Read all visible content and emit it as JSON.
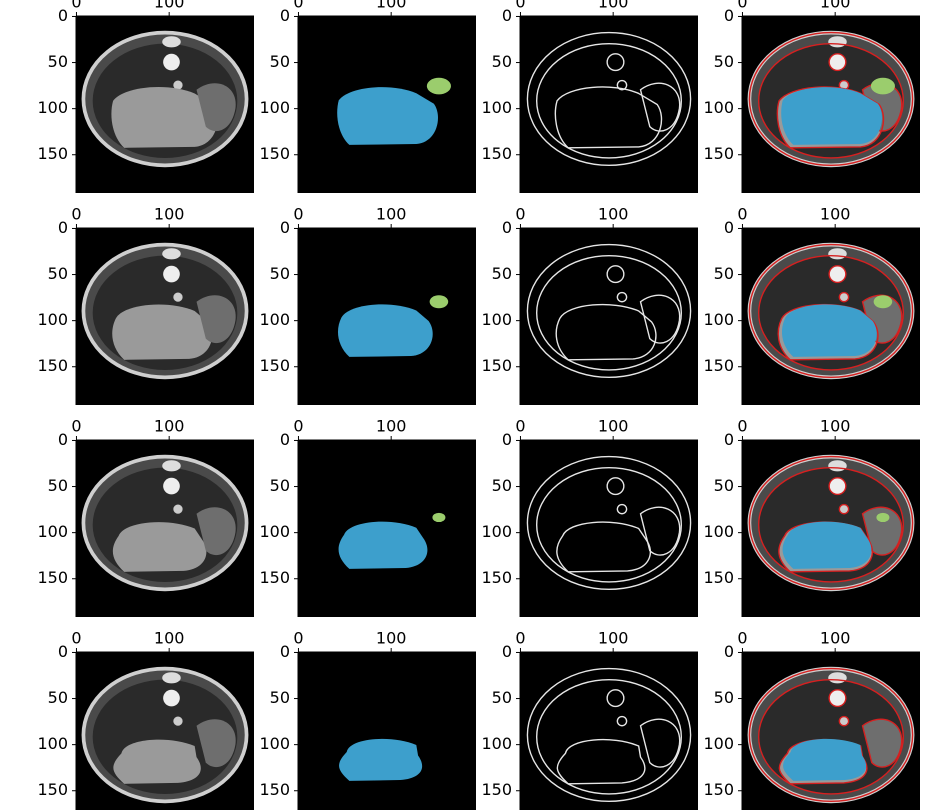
{
  "chart_data": [
    {
      "type": "image",
      "xlim": [
        -0.5,
        191.5
      ],
      "ylim": [
        191.5,
        -0.5
      ],
      "xticks": [
        0,
        100
      ],
      "yticks": [
        0,
        50,
        100,
        150
      ]
    },
    {
      "type": "image",
      "xlim": [
        -0.5,
        191.5
      ],
      "ylim": [
        191.5,
        -0.5
      ],
      "xticks": [
        0,
        100
      ],
      "yticks": [
        0,
        50,
        100,
        150
      ]
    },
    {
      "type": "image",
      "xlim": [
        -0.5,
        191.5
      ],
      "ylim": [
        191.5,
        -0.5
      ],
      "xticks": [
        0,
        100
      ],
      "yticks": [
        0,
        50,
        100,
        150
      ]
    },
    {
      "type": "image",
      "xlim": [
        -0.5,
        191.5
      ],
      "ylim": [
        191.5,
        -0.5
      ],
      "xticks": [
        0,
        100
      ],
      "yticks": [
        0,
        50,
        100,
        150
      ]
    },
    {
      "type": "image",
      "xlim": [
        -0.5,
        191.5
      ],
      "ylim": [
        191.5,
        -0.5
      ],
      "xticks": [
        0,
        100
      ],
      "yticks": [
        0,
        50,
        100,
        150
      ]
    },
    {
      "type": "image",
      "xlim": [
        -0.5,
        191.5
      ],
      "ylim": [
        191.5,
        -0.5
      ],
      "xticks": [
        0,
        100
      ],
      "yticks": [
        0,
        50,
        100,
        150
      ]
    },
    {
      "type": "image",
      "xlim": [
        -0.5,
        191.5
      ],
      "ylim": [
        191.5,
        -0.5
      ],
      "xticks": [
        0,
        100
      ],
      "yticks": [
        0,
        50,
        100,
        150
      ]
    },
    {
      "type": "image",
      "xlim": [
        -0.5,
        191.5
      ],
      "ylim": [
        191.5,
        -0.5
      ],
      "xticks": [
        0,
        100
      ],
      "yticks": [
        0,
        50,
        100,
        150
      ]
    },
    {
      "type": "image",
      "xlim": [
        -0.5,
        191.5
      ],
      "ylim": [
        191.5,
        -0.5
      ],
      "xticks": [
        0,
        100
      ],
      "yticks": [
        0,
        50,
        100,
        150
      ]
    },
    {
      "type": "image",
      "xlim": [
        -0.5,
        191.5
      ],
      "ylim": [
        191.5,
        -0.5
      ],
      "xticks": [
        0,
        100
      ],
      "yticks": [
        0,
        50,
        100,
        150
      ]
    },
    {
      "type": "image",
      "xlim": [
        -0.5,
        191.5
      ],
      "ylim": [
        191.5,
        -0.5
      ],
      "xticks": [
        0,
        100
      ],
      "yticks": [
        0,
        50,
        100,
        150
      ]
    },
    {
      "type": "image",
      "xlim": [
        -0.5,
        191.5
      ],
      "ylim": [
        191.5,
        -0.5
      ],
      "xticks": [
        0,
        100
      ],
      "yticks": [
        0,
        50,
        100,
        150
      ]
    },
    {
      "type": "image",
      "xlim": [
        -0.5,
        191.5
      ],
      "ylim": [
        191.5,
        -0.5
      ],
      "xticks": [
        0,
        100
      ],
      "yticks": [
        0,
        50,
        100,
        150
      ]
    },
    {
      "type": "image",
      "xlim": [
        -0.5,
        191.5
      ],
      "ylim": [
        191.5,
        -0.5
      ],
      "xticks": [
        0,
        100
      ],
      "yticks": [
        0,
        50,
        100,
        150
      ]
    },
    {
      "type": "image",
      "xlim": [
        -0.5,
        191.5
      ],
      "ylim": [
        191.5,
        -0.5
      ],
      "xticks": [
        0,
        100
      ],
      "yticks": [
        0,
        50,
        100,
        150
      ]
    },
    {
      "type": "image",
      "xlim": [
        -0.5,
        191.5
      ],
      "ylim": [
        191.5,
        -0.5
      ],
      "xticks": [
        0,
        100
      ],
      "yticks": [
        0,
        50,
        100,
        150
      ]
    }
  ]
}
